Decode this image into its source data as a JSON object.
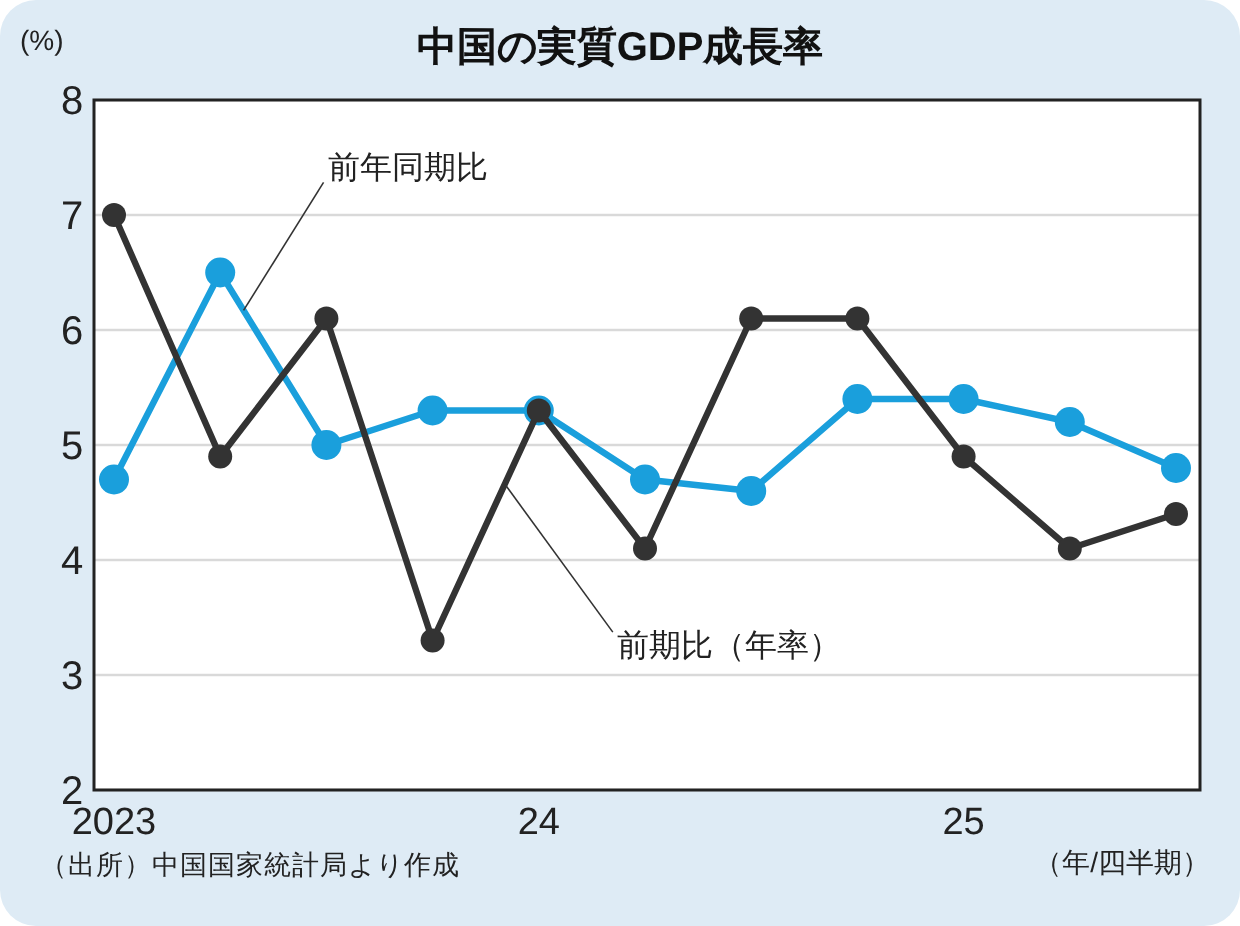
{
  "chart_data": {
    "type": "line",
    "title": "中国の実質GDP成長率",
    "ylabel": "(%)",
    "xlabel": "（年/四半期）",
    "categories": [
      "2023",
      null,
      null,
      null,
      "24",
      null,
      null,
      null,
      "25",
      null,
      null
    ],
    "series": [
      {
        "name": "前年同期比",
        "color": "#1a9fdc",
        "values": [
          4.7,
          6.5,
          5.0,
          5.3,
          5.3,
          4.7,
          4.6,
          5.4,
          5.4,
          5.2,
          4.8
        ]
      },
      {
        "name": "前期比（年率）",
        "color": "#333333",
        "values": [
          7.0,
          4.9,
          6.1,
          3.3,
          5.3,
          4.1,
          6.1,
          6.1,
          4.9,
          4.1,
          4.4
        ]
      }
    ],
    "ylim": [
      2,
      8
    ],
    "yticks": [
      2,
      3,
      4,
      5,
      6,
      7,
      8
    ],
    "grid": "y",
    "marker": "circle",
    "line_style": "solid",
    "annotations": [
      "（出所）中国国家統計局より作成"
    ]
  }
}
